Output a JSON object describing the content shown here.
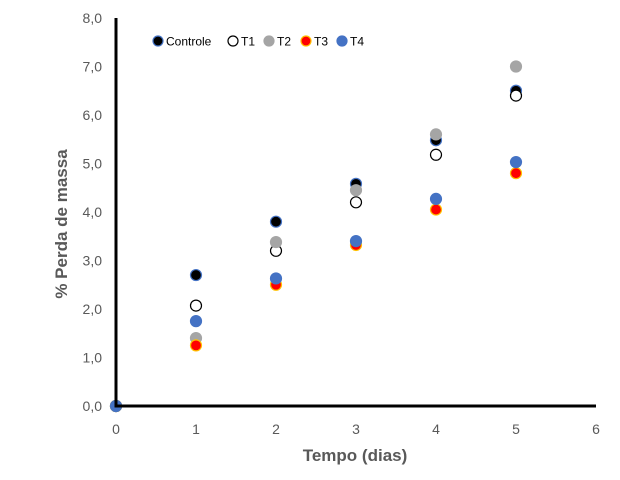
{
  "chart_data": {
    "type": "scatter",
    "xlabel": "Tempo (dias)",
    "ylabel": "% Perda de massa",
    "xlim": [
      0,
      6
    ],
    "ylim": [
      0,
      8
    ],
    "x_ticks": [
      "0",
      "1",
      "2",
      "3",
      "4",
      "5",
      "6"
    ],
    "y_ticks": [
      "0,0",
      "1,0",
      "2,0",
      "3,0",
      "4,0",
      "5,0",
      "6,0",
      "7,0",
      "8,0"
    ],
    "grid": false,
    "legend_position": "top-left",
    "series": [
      {
        "name": "Controle",
        "fill": "#000000",
        "stroke": "#4472c4",
        "x": [
          0,
          1,
          2,
          3,
          4,
          5
        ],
        "y": [
          0,
          2.7,
          3.8,
          4.58,
          5.48,
          6.5
        ]
      },
      {
        "name": "T1",
        "fill": "#ffffff",
        "stroke": "#000000",
        "x": [
          0,
          1,
          2,
          3,
          4,
          5
        ],
        "y": [
          0,
          2.07,
          3.2,
          4.2,
          5.18,
          6.4
        ]
      },
      {
        "name": "T2",
        "fill": "#a5a5a5",
        "stroke": "#a5a5a5",
        "x": [
          0,
          1,
          2,
          3,
          4,
          5
        ],
        "y": [
          0,
          1.4,
          3.38,
          4.45,
          5.6,
          7.0
        ]
      },
      {
        "name": "T3",
        "fill": "#ff0000",
        "stroke": "#ffc000",
        "x": [
          0,
          1,
          2,
          3,
          4,
          5
        ],
        "y": [
          0,
          1.25,
          2.5,
          3.32,
          4.05,
          4.8
        ]
      },
      {
        "name": "T4",
        "fill": "#4472c4",
        "stroke": "#4472c4",
        "x": [
          0,
          1,
          2,
          3,
          4,
          5
        ],
        "y": [
          0,
          1.75,
          2.63,
          3.4,
          4.27,
          5.03
        ]
      }
    ]
  }
}
